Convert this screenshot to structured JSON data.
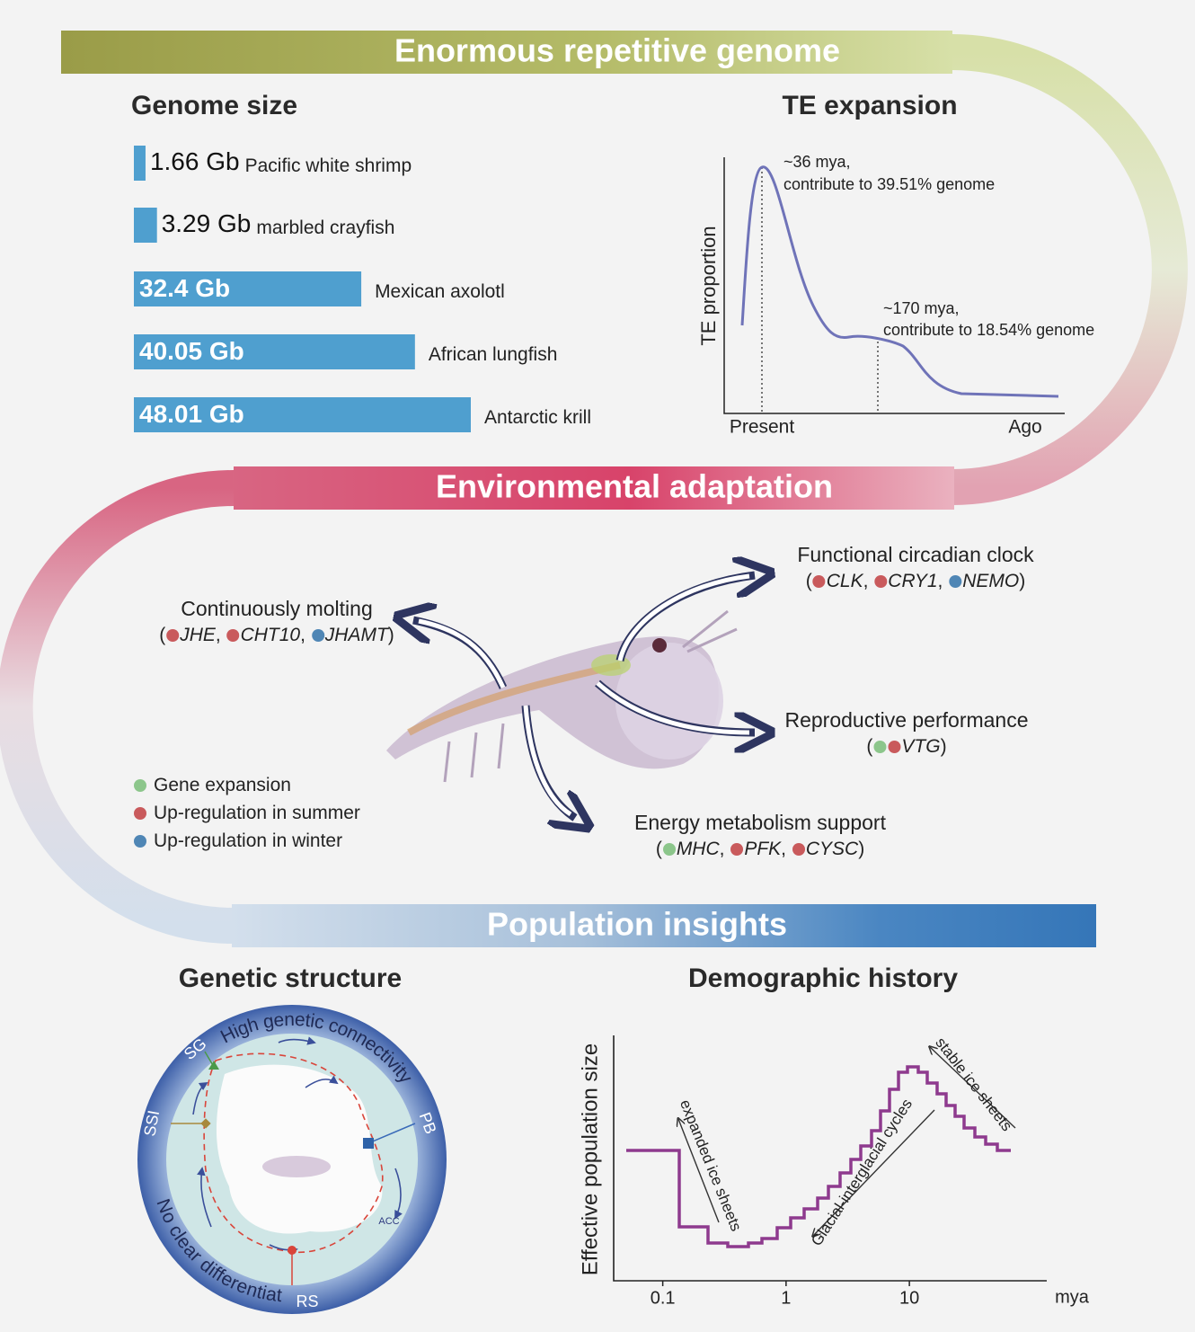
{
  "sections": [
    {
      "title": "Enormous repetitive genome"
    },
    {
      "title": "Environmental adaptation"
    },
    {
      "title": "Population insights"
    }
  ],
  "genome_size": {
    "title": "Genome size",
    "type": "bar",
    "color": "#4f9fcf",
    "species": [
      "Pacific white shrimp",
      "marbled crayfish",
      "Mexican axolotl",
      "African lungfish",
      "Antarctic krill"
    ],
    "values": [
      1.66,
      3.29,
      32.4,
      40.05,
      48.01
    ],
    "value_labels": [
      "1.66 Gb",
      "3.29 Gb",
      "32.4 Gb",
      "40.05 Gb",
      "48.01 Gb"
    ]
  },
  "te_expansion": {
    "title": "TE expansion",
    "y_label": "TE proportion",
    "x_labels": [
      "Present",
      "Ago"
    ],
    "annotations": [
      [
        "~36 mya,",
        "contribute to 39.51% genome"
      ],
      [
        "~170 mya,",
        "contribute to 18.54% genome"
      ]
    ]
  },
  "adaptation": {
    "traits": [
      {
        "title": "Continuously molting",
        "genes": [
          {
            "name": "JHE",
            "colors": [
              "#c95a5c"
            ]
          },
          {
            "name": "CHT10",
            "colors": [
              "#c95a5c"
            ]
          },
          {
            "name": "JHAMT",
            "colors": [
              "#4f86b5"
            ]
          }
        ]
      },
      {
        "title": "Functional circadian clock",
        "genes": [
          {
            "name": "CLK",
            "colors": [
              "#c95a5c"
            ]
          },
          {
            "name": "CRY1",
            "colors": [
              "#c95a5c"
            ]
          },
          {
            "name": "NEMO",
            "colors": [
              "#4f86b5"
            ]
          }
        ]
      },
      {
        "title": "Reproductive performance",
        "genes": [
          {
            "name": "VTG",
            "colors": [
              "#8cc68b",
              "#c95a5c"
            ]
          }
        ]
      },
      {
        "title": "Energy metabolism support",
        "genes": [
          {
            "name": "MHC",
            "colors": [
              "#8cc68b"
            ]
          },
          {
            "name": "PFK",
            "colors": [
              "#c95a5c"
            ]
          },
          {
            "name": "CYSC",
            "colors": [
              "#c95a5c"
            ]
          }
        ]
      }
    ],
    "legend": [
      {
        "label": "Gene expansion",
        "color": "#8cc68b"
      },
      {
        "label": "Up-regulation in summer",
        "color": "#c95a5c"
      },
      {
        "label": "Up-regulation in winter",
        "color": "#4f86b5"
      }
    ]
  },
  "genetic_structure": {
    "title": "Genetic structure",
    "arc_labels": [
      "High genetic connectivity",
      "No clear differentiation"
    ],
    "sites": [
      "SG",
      "SSI",
      "PB",
      "RS"
    ],
    "current": "ACC"
  },
  "demographic_history": {
    "title": "Demographic history",
    "y_label": "Effective population size",
    "x_label": "mya",
    "xscale": "log",
    "xlim": [
      0.04,
      130
    ],
    "xticks": [
      0.1,
      1,
      10
    ],
    "annotations": [
      "expanded ice sheets",
      "Glacial-interglacial cycles",
      "stable ice sheets"
    ],
    "color": "#8e3a8e"
  }
}
